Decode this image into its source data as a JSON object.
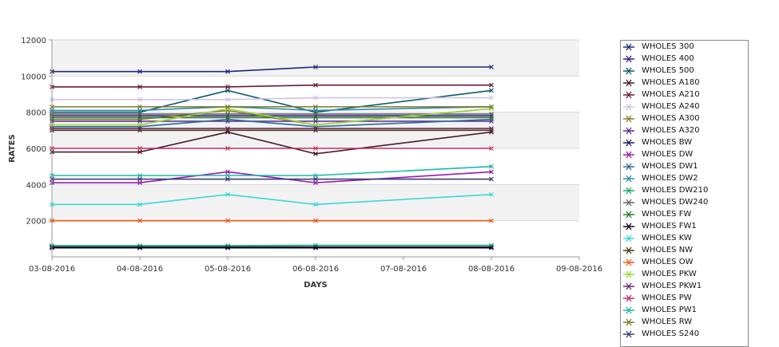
{
  "chart_data": {
    "type": "line",
    "xlabel": "DAYS",
    "ylabel": "RATES",
    "ylim": [
      0,
      12000
    ],
    "y_ticks": [
      2000,
      4000,
      6000,
      8000,
      10000,
      12000
    ],
    "x_ticks": [
      "03-08-2016",
      "04-08-2016",
      "05-08-2016",
      "06-08-2016",
      "07-08-2016",
      "08-08-2016",
      "09-08-2016"
    ],
    "x": [
      "03-08-2016",
      "04-08-2016",
      "05-08-2016",
      "06-08-2016",
      "08-08-2016"
    ],
    "grid": true,
    "legend_position": "right",
    "series": [
      {
        "name": "WHOLES 300",
        "color": "#1e2a78",
        "values": [
          10250,
          10250,
          10250,
          10500,
          10500
        ]
      },
      {
        "name": "WHOLES 400",
        "color": "#3a1e8c",
        "values": [
          7800,
          7800,
          7800,
          7800,
          7800
        ]
      },
      {
        "name": "WHOLES 500",
        "color": "#0d5c6b",
        "values": [
          8000,
          8000,
          9200,
          8000,
          9200
        ]
      },
      {
        "name": "WHOLES A180",
        "color": "#4a1a2a",
        "values": [
          5800,
          5800,
          6900,
          5700,
          6900
        ]
      },
      {
        "name": "WHOLES A210",
        "color": "#6b1a3a",
        "values": [
          9400,
          9400,
          9400,
          9500,
          9500
        ]
      },
      {
        "name": "WHOLES A240",
        "color": "#cfc3e6",
        "values": [
          8700,
          8700,
          8700,
          8800,
          8800
        ]
      },
      {
        "name": "WHOLES A300",
        "color": "#8a7a2a",
        "values": [
          7600,
          7600,
          8100,
          7300,
          8200
        ]
      },
      {
        "name": "WHOLES A320",
        "color": "#5a2a9a",
        "values": [
          7500,
          7500,
          7500,
          7500,
          7500
        ]
      },
      {
        "name": "WHOLES BW",
        "color": "#1a1a6b",
        "values": [
          550,
          550,
          550,
          550,
          550
        ]
      },
      {
        "name": "WHOLES DW",
        "color": "#9a1aaa",
        "values": [
          4100,
          4100,
          4700,
          4100,
          4700
        ]
      },
      {
        "name": "WHOLES DW1",
        "color": "#2a6a9a",
        "values": [
          7200,
          7200,
          7600,
          7200,
          7600
        ]
      },
      {
        "name": "WHOLES DW2",
        "color": "#2a8aaa",
        "values": [
          8100,
          8100,
          8300,
          8100,
          8300
        ]
      },
      {
        "name": "WHOLES DW210",
        "color": "#1aa86a",
        "values": [
          620,
          620,
          620,
          640,
          640
        ]
      },
      {
        "name": "WHOLES DW240",
        "color": "#666666",
        "values": [
          7900,
          7900,
          7900,
          7900,
          7900
        ]
      },
      {
        "name": "WHOLES FW",
        "color": "#2a7a2a",
        "values": [
          7700,
          7700,
          7700,
          7700,
          7700
        ]
      },
      {
        "name": "WHOLES FW1",
        "color": "#0a0a1a",
        "values": [
          500,
          500,
          500,
          500,
          500
        ]
      },
      {
        "name": "WHOLES KW",
        "color": "#3ad8d8",
        "values": [
          2900,
          2900,
          3450,
          2900,
          3450
        ]
      },
      {
        "name": "WHOLES NW",
        "color": "#4a3a0a",
        "values": [
          7000,
          7000,
          7000,
          7000,
          7000
        ]
      },
      {
        "name": "WHOLES OW",
        "color": "#e85a1a",
        "values": [
          2000,
          2000,
          2000,
          2000,
          2000
        ]
      },
      {
        "name": "WHOLES PKW",
        "color": "#9ad83a",
        "values": [
          7300,
          7300,
          8200,
          7300,
          8200
        ]
      },
      {
        "name": "WHOLES PKW1",
        "color": "#6a2a6a",
        "values": [
          7100,
          7100,
          7100,
          7100,
          7100
        ]
      },
      {
        "name": "WHOLES PW",
        "color": "#c82a6a",
        "values": [
          6000,
          6000,
          6000,
          6000,
          6000
        ]
      },
      {
        "name": "WHOLES PW1",
        "color": "#1ab8a8",
        "values": [
          4500,
          4500,
          4500,
          4500,
          5000
        ]
      },
      {
        "name": "WHOLES RW",
        "color": "#7a7a2a",
        "values": [
          8300,
          8300,
          8300,
          8300,
          8300
        ]
      },
      {
        "name": "WHOLES S240",
        "color": "#3a3a7a",
        "values": [
          4300,
          4300,
          4300,
          4300,
          4300
        ]
      }
    ]
  }
}
